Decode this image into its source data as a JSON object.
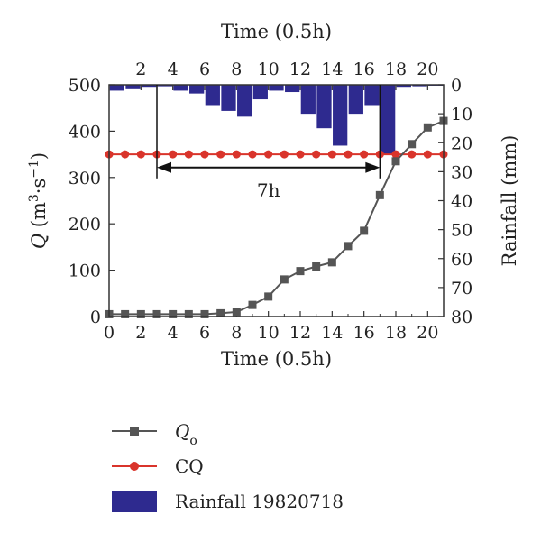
{
  "chart_data": {
    "type": "line",
    "x_bottom": {
      "label": "Time (0.5h)",
      "ticks": [
        "0",
        "2",
        "4",
        "6",
        "8",
        "10",
        "12",
        "14",
        "16",
        "18",
        "20"
      ],
      "range": [
        0,
        21
      ]
    },
    "x_top": {
      "label": "Time (0.5h)",
      "ticks": [
        "2",
        "4",
        "6",
        "8",
        "10",
        "12",
        "14",
        "16",
        "18",
        "20"
      ]
    },
    "y_left": {
      "label_parts": [
        "Q",
        " (m",
        "3",
        "·s",
        "−1",
        ")"
      ],
      "ticks": [
        "0",
        "100",
        "200",
        "300",
        "400",
        "500"
      ],
      "range": [
        0,
        500
      ]
    },
    "y_right": {
      "label": "Rainfall (mm)",
      "ticks": [
        "0",
        "10",
        "20",
        "30",
        "40",
        "50",
        "60",
        "70",
        "80"
      ],
      "range": [
        0,
        80
      ],
      "inverted": true
    },
    "series": [
      {
        "name": "Q",
        "name_sub": "o",
        "kind": "line",
        "marker": "square",
        "color": "#555555",
        "x": [
          0,
          1,
          2,
          3,
          4,
          5,
          6,
          7,
          8,
          9,
          10,
          11,
          12,
          13,
          14,
          15,
          16,
          17,
          18,
          19,
          20,
          21
        ],
        "y": [
          5,
          5,
          5,
          5,
          5,
          5,
          5,
          7,
          10,
          25,
          43,
          80,
          98,
          108,
          117,
          152,
          185,
          262,
          335,
          372,
          408,
          422
        ]
      },
      {
        "name": "CQ",
        "kind": "line",
        "marker": "circle",
        "color": "#d9342b",
        "x": [
          0,
          1,
          2,
          3,
          4,
          5,
          6,
          7,
          8,
          9,
          10,
          11,
          12,
          13,
          14,
          15,
          16,
          17,
          18,
          19,
          20,
          21
        ],
        "y": [
          350,
          350,
          350,
          350,
          350,
          350,
          350,
          350,
          350,
          350,
          350,
          350,
          350,
          350,
          350,
          350,
          350,
          350,
          350,
          350,
          350,
          350
        ]
      },
      {
        "name": "Rainfall 19820718",
        "kind": "bar",
        "axis": "right",
        "color": "#2e2a8f",
        "x": [
          0,
          1,
          2,
          3,
          4,
          5,
          6,
          7,
          8,
          9,
          10,
          11,
          12,
          13,
          14,
          15,
          16,
          17,
          18,
          19,
          20
        ],
        "y": [
          2,
          1.5,
          1,
          0.5,
          2,
          3,
          7,
          9,
          11,
          5,
          2,
          2.5,
          10,
          15,
          21,
          10,
          7,
          24,
          1,
          0.5,
          0.3
        ]
      }
    ],
    "annotation": {
      "text": "7h",
      "x_start": 3,
      "x_end": 17,
      "y": 300
    },
    "legend": {
      "placement": "bottom"
    }
  }
}
